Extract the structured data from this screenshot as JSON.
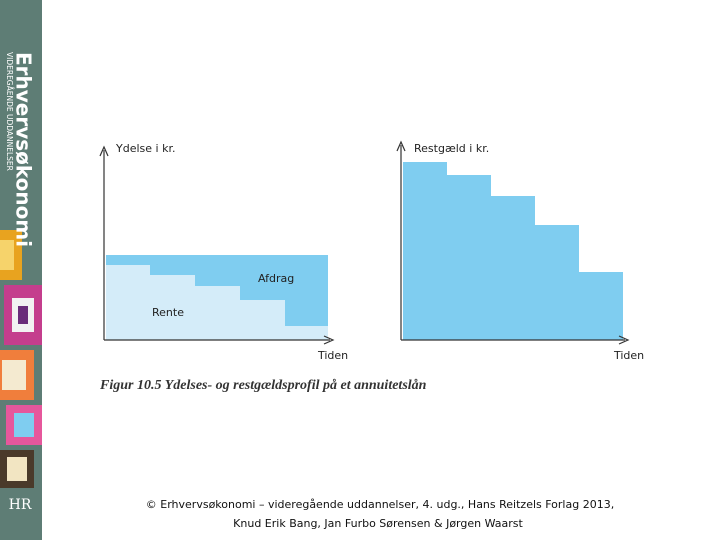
{
  "sidebar": {
    "title": "Erhvervsøkonomi",
    "subtitle": "VIDEREGÅENDE UDDANNELSER",
    "logo": "HR"
  },
  "figures": [
    {
      "y_label": "Ydelse i kr.",
      "x_label": "Tiden",
      "labels": [
        "Afdrag",
        "Rente"
      ]
    },
    {
      "y_label": "Restgæld i kr.",
      "x_label": "Tiden"
    }
  ],
  "caption": "Figur 10.5 Ydelses- og restgældsprofil på et annuitetslån",
  "footer": [
    "© Erhvervsøkonomi – videregående uddannelser, 4. udg., Hans Reitzels Forlag 2013,",
    "Knud Erik Bang, Jan Furbo Sørensen & Jørgen Waarst"
  ]
}
